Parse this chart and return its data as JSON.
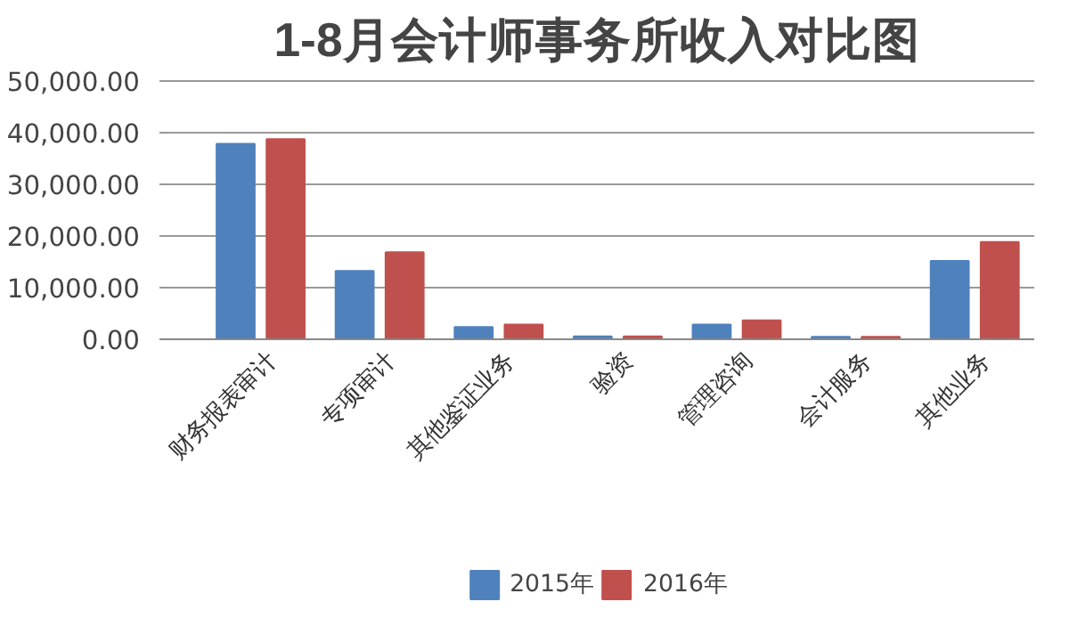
{
  "chart_data": {
    "type": "bar",
    "title": "1-8月会计师事务所收入对比图",
    "categories": [
      "财务报表审计",
      "专项审计",
      "其他鉴证业务",
      "验资",
      "管理咨询",
      "会计服务",
      "其他业务"
    ],
    "series": [
      {
        "name": "2015年",
        "color": "#4f81bd",
        "values": [
          37800,
          13200,
          2300,
          500,
          2800,
          400,
          15100
        ]
      },
      {
        "name": "2016年",
        "color": "#c0504d",
        "values": [
          38700,
          16800,
          2800,
          500,
          3600,
          400,
          18800
        ]
      }
    ],
    "ylim": [
      0,
      50000
    ],
    "yticks": [
      {
        "value": 0,
        "label": "0.00"
      },
      {
        "value": 10000,
        "label": "10,000.00"
      },
      {
        "value": 20000,
        "label": "20,000.00"
      },
      {
        "value": 30000,
        "label": "30,000.00"
      },
      {
        "value": 40000,
        "label": "40,000.00"
      },
      {
        "value": 50000,
        "label": "50,000.00"
      }
    ],
    "grid": "y",
    "legend": "bottom"
  }
}
